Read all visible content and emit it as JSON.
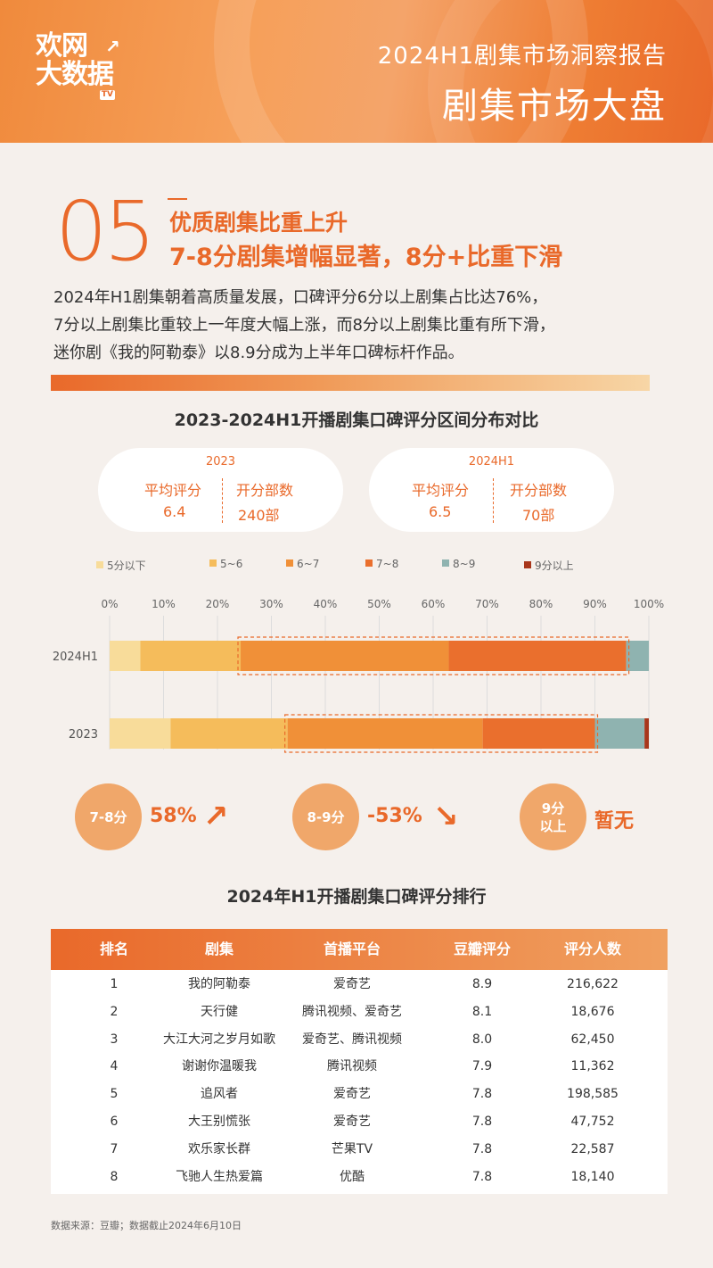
{
  "header": {
    "logo_line1": "欢网",
    "logo_line2": "大数据",
    "logo_tv": "TV",
    "subtitle": "2024H1剧集市场洞察报告",
    "title": "剧集市场大盘"
  },
  "section": {
    "number": "05",
    "heading1": "优质剧集比重上升",
    "heading2": "7-8分剧集增幅显著，8分+比重下滑",
    "intro": [
      "2024年H1剧集朝着高质量发展，口碑评分6分以上剧集占比达76%，",
      "7分以上剧集比重较上一年度大幅上涨，而8分以上剧集比重有所下滑，",
      "迷你剧《我的阿勒泰》以8.9分成为上半年口碑标杆作品。"
    ]
  },
  "summary": [
    {
      "year": "2023",
      "avg_label": "平均评分",
      "count_label": "开分部数",
      "avg": "6.4",
      "count": "240部"
    },
    {
      "year": "2024H1",
      "avg_label": "平均评分",
      "count_label": "开分部数",
      "avg": "6.5",
      "count": "70部"
    }
  ],
  "chart_data": {
    "type": "bar",
    "orientation": "horizontal",
    "stacked": true,
    "title": "2023-2024H1开播剧集口碑评分区间分布对比",
    "categories": [
      "2024H1",
      "2023"
    ],
    "x_ticks": [
      "0%",
      "10%",
      "20%",
      "30%",
      "40%",
      "50%",
      "60%",
      "70%",
      "80%",
      "90%",
      "100%"
    ],
    "xlim": [
      0,
      100
    ],
    "legend_position": "top",
    "series": [
      {
        "name": "5分以下",
        "color": "#f8dc9a",
        "values": [
          5.7,
          11.3
        ]
      },
      {
        "name": "5~6",
        "color": "#f5bc5b",
        "values": [
          18.6,
          21.7
        ]
      },
      {
        "name": "6~7",
        "color": "#f09038",
        "values": [
          38.6,
          36.2
        ]
      },
      {
        "name": "7~8",
        "color": "#ea6f2d",
        "values": [
          32.9,
          20.8
        ]
      },
      {
        "name": "8~9",
        "color": "#8fb3b0",
        "values": [
          4.2,
          9.2
        ]
      },
      {
        "name": "9分以上",
        "color": "#a8361b",
        "values": [
          0,
          0.8
        ]
      }
    ]
  },
  "callouts": [
    {
      "label": "7-8分",
      "value": "58%",
      "arrow": "↗"
    },
    {
      "label": "8-9分",
      "value": "-53%",
      "arrow": "↘"
    },
    {
      "label": "9分\n以上",
      "value": "暂无"
    }
  ],
  "ranking": {
    "title": "2024年H1开播剧集口碑评分排行",
    "headers": [
      "排名",
      "剧集",
      "首播平台",
      "豆瓣评分",
      "评分人数"
    ],
    "rows": [
      [
        "1",
        "我的阿勒泰",
        "爱奇艺",
        "8.9",
        "216,622"
      ],
      [
        "2",
        "天行健",
        "腾讯视频、爱奇艺",
        "8.1",
        "18,676"
      ],
      [
        "3",
        "大江大河之岁月如歌",
        "爱奇艺、腾讯视频",
        "8.0",
        "62,450"
      ],
      [
        "4",
        "谢谢你温暖我",
        "腾讯视频",
        "7.9",
        "11,362"
      ],
      [
        "5",
        "追风者",
        "爱奇艺",
        "7.8",
        "198,585"
      ],
      [
        "6",
        "大王别慌张",
        "爱奇艺",
        "7.8",
        "47,752"
      ],
      [
        "7",
        "欢乐家长群",
        "芒果TV",
        "7.8",
        "22,587"
      ],
      [
        "8",
        "飞驰人生热爱篇",
        "优酷",
        "7.8",
        "18,140"
      ]
    ]
  },
  "footer": "数据来源：豆瓣；数据截止2024年6月10日"
}
